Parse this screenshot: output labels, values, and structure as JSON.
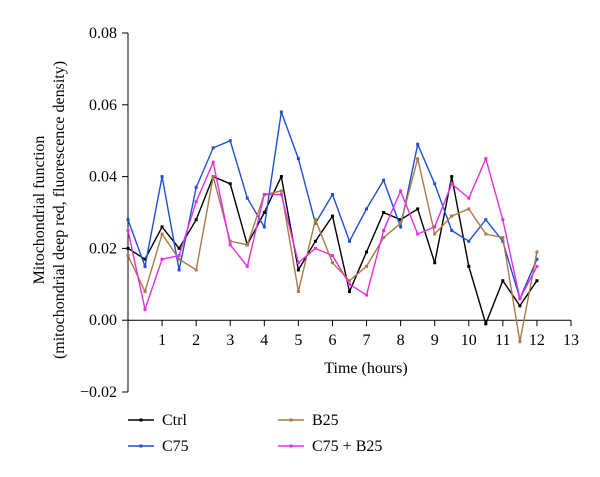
{
  "chart_data": {
    "type": "line",
    "title": "",
    "xlabel": "Time (hours)",
    "ylabel_lines": [
      "Mitochondrial function",
      "(mitochondrial deep red, fluorescence density)"
    ],
    "xlim": [
      0,
      13
    ],
    "ylim": [
      -0.02,
      0.08
    ],
    "xticks": [
      1,
      2,
      3,
      4,
      5,
      6,
      7,
      8,
      9,
      10,
      11,
      12,
      13
    ],
    "xtick_labels": [
      "1",
      "2",
      "3",
      "4",
      "5",
      "6",
      "7",
      "8",
      "9",
      "10",
      "11",
      "12",
      "13"
    ],
    "yticks": [
      -0.02,
      0.0,
      0.02,
      0.04,
      0.06,
      0.08
    ],
    "ytick_labels": [
      "−0.02",
      "0.00",
      "0.02",
      "0.04",
      "0.06",
      "0.08"
    ],
    "grid": false,
    "legend_position": "bottom-left",
    "x": [
      0,
      0.5,
      1,
      1.5,
      2,
      2.5,
      3,
      3.5,
      4,
      4.5,
      5,
      5.5,
      6,
      6.5,
      7,
      7.5,
      8,
      8.5,
      9,
      9.5,
      10,
      10.5,
      11,
      11.5,
      12
    ],
    "series": [
      {
        "name": "Ctrl",
        "color": "#000000",
        "values": [
          0.02,
          0.017,
          0.026,
          0.02,
          0.028,
          0.04,
          0.038,
          0.021,
          0.03,
          0.04,
          0.014,
          0.022,
          0.029,
          0.008,
          0.019,
          0.03,
          0.028,
          0.031,
          0.016,
          0.04,
          0.015,
          -0.001,
          0.011,
          0.004,
          0.011
        ]
      },
      {
        "name": "C75",
        "color": "#1f4fd6",
        "values": [
          0.028,
          0.015,
          0.04,
          0.014,
          0.037,
          0.048,
          0.05,
          0.034,
          0.026,
          0.058,
          0.045,
          0.027,
          0.035,
          0.022,
          0.031,
          0.039,
          0.026,
          0.049,
          0.038,
          0.025,
          0.022,
          0.028,
          0.022,
          0.006,
          0.017
        ]
      },
      {
        "name": "B25",
        "color": "#a87a4a",
        "values": [
          0.018,
          0.008,
          0.024,
          0.017,
          0.014,
          0.04,
          0.022,
          0.021,
          0.035,
          0.036,
          0.008,
          0.028,
          0.016,
          0.011,
          0.015,
          0.023,
          0.027,
          0.045,
          0.024,
          0.029,
          0.031,
          0.024,
          0.023,
          -0.006,
          0.019
        ]
      },
      {
        "name": "C75 + B25",
        "color": "#e62ee6",
        "values": [
          0.025,
          0.003,
          0.017,
          0.018,
          0.033,
          0.044,
          0.021,
          0.015,
          0.035,
          0.035,
          0.016,
          0.02,
          0.018,
          0.01,
          0.007,
          0.025,
          0.036,
          0.024,
          0.026,
          0.038,
          0.034,
          0.045,
          0.028,
          0.006,
          0.015
        ]
      }
    ]
  }
}
